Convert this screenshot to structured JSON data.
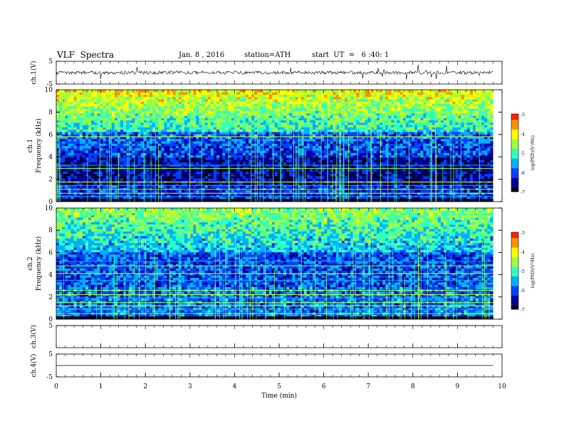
{
  "header": {
    "title": "VLF  Spectra",
    "date": "Jan. 8 , 2016",
    "station": "station=ATH",
    "start": "start  UT  =   6 :40: 1"
  },
  "chart_data": [
    {
      "type": "line",
      "panel": "ch1-waveform",
      "ylabel": "ch.1(V)",
      "ylim": [
        -5,
        5
      ],
      "yticks": [
        "5",
        "-5"
      ],
      "baseline": 0,
      "color": "#000000"
    },
    {
      "type": "heatmap",
      "panel": "ch1-spectrogram",
      "ylabel": "ch.1",
      "ylabel2": "Frequency  (kHz)",
      "ylim": [
        0,
        10
      ],
      "yticks": [
        "0",
        "2",
        "4",
        "6",
        "8",
        "10"
      ],
      "colorbar": {
        "label": "log(PSD)(V²/Hz)",
        "range": [
          -7,
          -3
        ],
        "ticks": [
          "-3",
          "-4",
          "-5",
          "-6",
          "-7"
        ]
      },
      "bands_khz": [
        0.2,
        0.45,
        0.75,
        1.1,
        1.45,
        1.75,
        2.95,
        3.25,
        5.8
      ]
    },
    {
      "type": "heatmap",
      "panel": "ch2-spectrogram",
      "ylabel": "ch.2",
      "ylabel2": "Frequency  (kHz)",
      "ylim": [
        0,
        10
      ],
      "yticks": [
        "0",
        "2",
        "4",
        "6",
        "8",
        "10"
      ],
      "colorbar": {
        "label": "log(PSD)(V²/Hz)",
        "range": [
          -7,
          -3
        ],
        "ticks": [
          "-3",
          "-4",
          "-5",
          "-6",
          "-7"
        ]
      },
      "bands_khz": [
        0.5,
        0.9,
        1.2,
        1.5,
        1.9,
        2.2,
        2.6,
        3.5,
        4.1,
        4.8,
        5.2
      ]
    },
    {
      "type": "line",
      "panel": "ch3-waveform",
      "ylabel": "ch.3(V)",
      "ylim": [
        -5,
        5
      ],
      "yticks": [
        "5"
      ],
      "baseline": 5
    },
    {
      "type": "line",
      "panel": "ch4-waveform",
      "ylabel": "ch.4(V)",
      "ylim": [
        -5,
        5
      ],
      "yticks": [
        "5",
        "-5"
      ],
      "baseline": 0
    }
  ],
  "xaxis": {
    "label": "Time  (min)",
    "range": [
      0,
      10
    ],
    "ticks": [
      "0",
      "1",
      "2",
      "3",
      "4",
      "5",
      "6",
      "7",
      "8",
      "9",
      "10"
    ],
    "data_end": 9.8
  },
  "colormap": [
    "#000020",
    "#00009a",
    "#0040ff",
    "#00b0ff",
    "#30ffc0",
    "#a0ff40",
    "#ffff00",
    "#ff9000",
    "#ff2000",
    "#ffffff"
  ]
}
